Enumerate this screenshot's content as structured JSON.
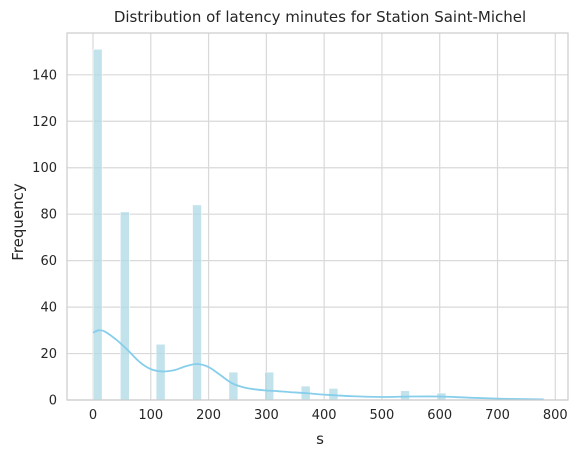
{
  "chart_data": {
    "type": "bar",
    "title": "Distribution of latency minutes for Station Saint-Michel",
    "xlabel": "s",
    "ylabel": "Frequency",
    "xlim": [
      -45,
      822
    ],
    "ylim": [
      0,
      158
    ],
    "xticks": [
      0,
      100,
      200,
      300,
      400,
      500,
      600,
      700,
      800
    ],
    "yticks": [
      0,
      20,
      40,
      60,
      80,
      100,
      120,
      140
    ],
    "grid": true,
    "legend": "none",
    "bin_width": 15.6,
    "bars": [
      {
        "x": 8,
        "value": 151
      },
      {
        "x": 55,
        "value": 81
      },
      {
        "x": 117,
        "value": 24
      },
      {
        "x": 180,
        "value": 84
      },
      {
        "x": 243,
        "value": 12
      },
      {
        "x": 305,
        "value": 12
      },
      {
        "x": 368,
        "value": 6
      },
      {
        "x": 416,
        "value": 5
      },
      {
        "x": 540,
        "value": 4
      },
      {
        "x": 603,
        "value": 3
      }
    ],
    "kde": {
      "x": [
        0,
        10,
        20,
        40,
        60,
        80,
        100,
        120,
        140,
        160,
        180,
        200,
        220,
        240,
        260,
        280,
        300,
        320,
        340,
        360,
        380,
        400,
        450,
        500,
        550,
        600,
        650,
        700,
        750,
        780
      ],
      "y": [
        29,
        30,
        29.5,
        26,
        21.5,
        16.5,
        13.3,
        12.3,
        12.8,
        14.5,
        15.5,
        14.2,
        10.8,
        7.3,
        5.5,
        4.6,
        4.1,
        3.8,
        3.4,
        3.1,
        2.7,
        2.3,
        1.6,
        1.3,
        1.5,
        1.5,
        1.0,
        0.6,
        0.35,
        0.25
      ]
    },
    "colors": {
      "bar": "#add8e6",
      "kde": "#87ceeb",
      "grid": "#d9d9d9",
      "axes_edge": "#cccccc",
      "text": "#262626"
    }
  }
}
